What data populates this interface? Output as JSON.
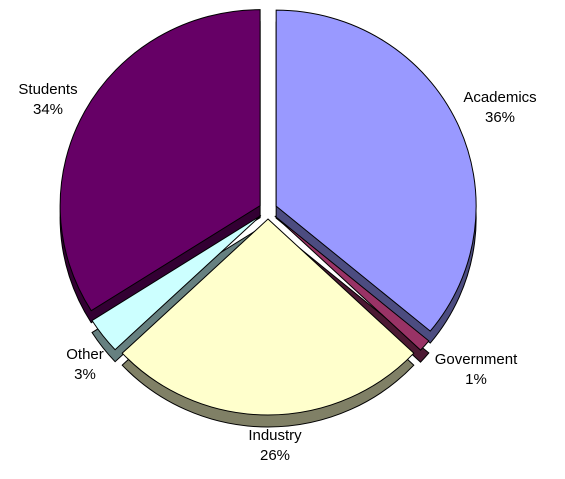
{
  "chart_data": {
    "type": "pie",
    "title": "",
    "slices": [
      {
        "name": "Academics",
        "value": 36,
        "label": "36%",
        "color": "#9999FF",
        "side_color": "#4C4C80"
      },
      {
        "name": "Government",
        "value": 1,
        "label": "1%",
        "color": "#993366",
        "side_color": "#4C1933"
      },
      {
        "name": "Industry",
        "value": 26,
        "label": "26%",
        "color": "#FFFFCC",
        "side_color": "#808066"
      },
      {
        "name": "Other",
        "value": 3,
        "label": "3%",
        "color": "#CCFFFF",
        "side_color": "#668080"
      },
      {
        "name": "Students",
        "value": 34,
        "label": "34%",
        "color": "#660066",
        "side_color": "#330033"
      }
    ],
    "exploded": true,
    "three_d": true,
    "legend": "none"
  }
}
